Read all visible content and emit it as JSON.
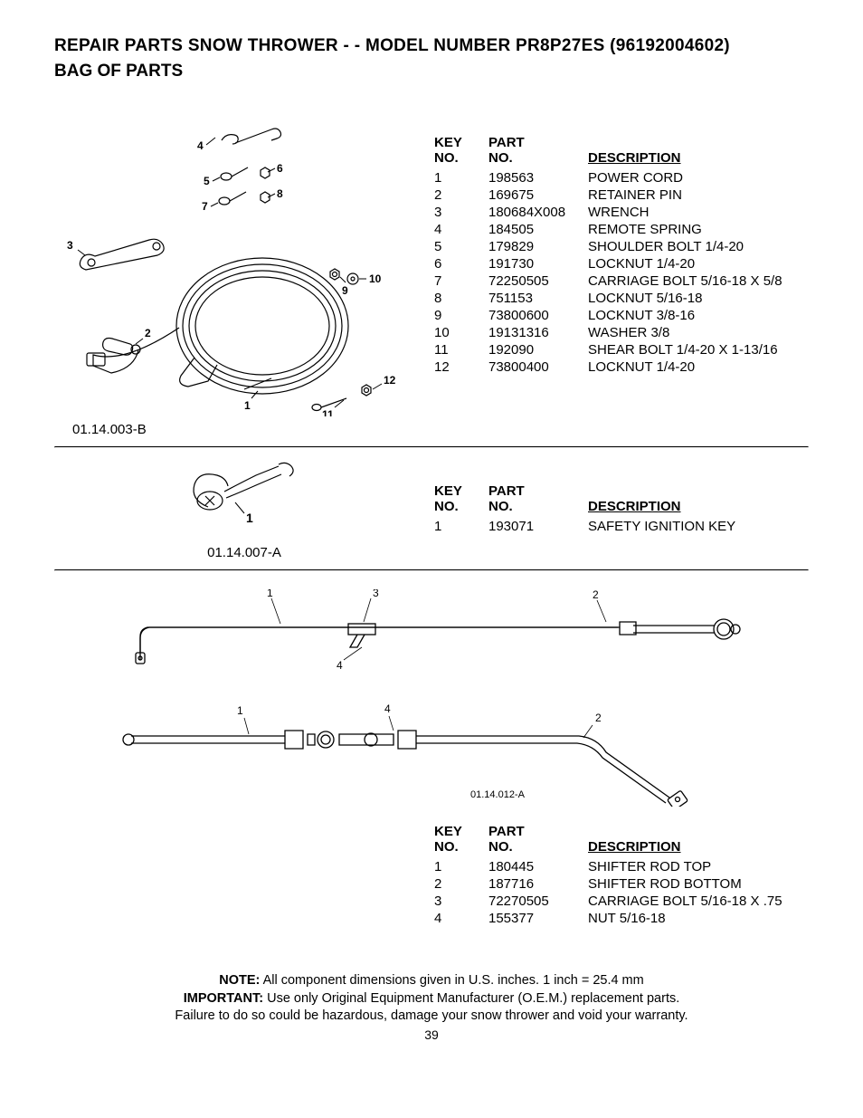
{
  "title": {
    "line1": "REPAIR PARTS  SNOW THROWER - - MODEL NUMBER  PR8P27ES (96192004602)",
    "line2": "BAG OF PARTS"
  },
  "headers": {
    "key": "KEY\nNO.",
    "part": "PART\nNO.",
    "desc": "DESCRIPTION"
  },
  "section1": {
    "diagram_id": "01.14.003-B",
    "callouts": [
      "1",
      "2",
      "3",
      "4",
      "5",
      "6",
      "7",
      "8",
      "9",
      "10",
      "11",
      "12"
    ],
    "rows": [
      {
        "key": "1",
        "part": "198563",
        "desc": "POWER CORD"
      },
      {
        "key": "2",
        "part": "169675",
        "desc": "RETAINER PIN"
      },
      {
        "key": "3",
        "part": "180684X008",
        "desc": "WRENCH"
      },
      {
        "key": "4",
        "part": "184505",
        "desc": "REMOTE SPRING"
      },
      {
        "key": "5",
        "part": "179829",
        "desc": "SHOULDER BOLT 1/4-20"
      },
      {
        "key": "6",
        "part": "191730",
        "desc": "LOCKNUT 1/4-20"
      },
      {
        "key": "7",
        "part": "72250505",
        "desc": "CARRIAGE BOLT 5/16-18 X 5/8"
      },
      {
        "key": "8",
        "part": "751153",
        "desc": "LOCKNUT 5/16-18"
      },
      {
        "key": "9",
        "part": "73800600",
        "desc": "LOCKNUT 3/8-16"
      },
      {
        "key": "10",
        "part": "19131316",
        "desc": "WASHER 3/8"
      },
      {
        "key": "11",
        "part": "192090",
        "desc": "SHEAR BOLT 1/4-20 X 1-13/16"
      },
      {
        "key": "12",
        "part": "73800400",
        "desc": "LOCKNUT 1/4-20"
      }
    ]
  },
  "section2": {
    "diagram_id": "01.14.007-A",
    "callouts": [
      "1"
    ],
    "rows": [
      {
        "key": "1",
        "part": "193071",
        "desc": "SAFETY IGNITION KEY"
      }
    ]
  },
  "section3": {
    "diagram_id": "01.14.012-A",
    "callouts": [
      "1",
      "2",
      "3",
      "4"
    ],
    "rows": [
      {
        "key": "1",
        "part": "180445",
        "desc": "SHIFTER ROD TOP"
      },
      {
        "key": "2",
        "part": "187716",
        "desc": "SHIFTER ROD BOTTOM"
      },
      {
        "key": "3",
        "part": "72270505",
        "desc": "CARRIAGE BOLT 5/16-18 X .75"
      },
      {
        "key": "4",
        "part": "155377",
        "desc": "NUT 5/16-18"
      }
    ]
  },
  "notes": {
    "line1_label": "NOTE:",
    "line1_text": "  All component dimensions given in U.S. inches.    1 inch = 25.4 mm",
    "line2_label": "IMPORTANT:",
    "line2_text": " Use only Original Equipment Manufacturer (O.E.M.) replacement parts.",
    "line3": "Failure to do so could be hazardous, damage your snow thrower and void your warranty."
  },
  "page_number": "39",
  "style": {
    "stroke": "#000000",
    "bg": "#ffffff",
    "title_fontsize": 19,
    "body_fontsize": 15,
    "callout_fontsize": 12,
    "diagram_fontsize": 11
  }
}
